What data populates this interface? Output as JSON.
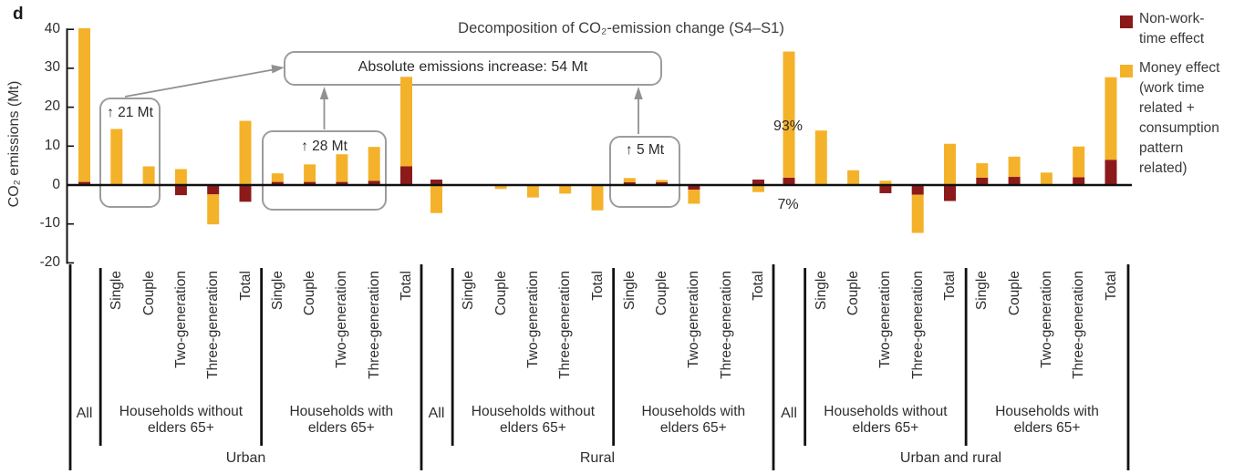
{
  "panel_label": "d",
  "title": "Decomposition of CO₂-emission change (S4–S1)",
  "y_axis": {
    "label": "CO₂ emissions (Mt)",
    "ticks": [
      40,
      30,
      20,
      10,
      0,
      -10,
      -20
    ]
  },
  "legend": [
    {
      "name": "Non-work-time effect",
      "display": "Non-work-\ntime effect",
      "color": "#8c1a1a"
    },
    {
      "name": "Money effect (work time related + consumption pattern related)",
      "display": "Money effect\n(work time\nrelated +\nconsumption\npattern\nrelated)",
      "color": "#f4b22a"
    }
  ],
  "annotations": {
    "absolute_increase": "Absolute emissions increase: 54 Mt",
    "urban_without_elders_increase": "↑ 21 Mt",
    "urban_with_elders_increase": "↑ 28 Mt",
    "rural_with_elders_increase": "↑ 5 Mt",
    "money_share": "93%",
    "non_work_share": "7%"
  },
  "chart_data": {
    "type": "bar",
    "stacked": true,
    "unit": "Mt",
    "ylabel": "CO₂ emissions (Mt)",
    "ylim": [
      -20,
      42
    ],
    "yticks": [
      40,
      30,
      20,
      10,
      0,
      -10,
      -20
    ],
    "grid": false,
    "legend_position": "top-right",
    "series_names": [
      "Non-work-time effect",
      "Money effect"
    ],
    "sections": [
      {
        "label": "Urban",
        "groups": [
          {
            "label": "All",
            "bars": [
              {
                "category": "All",
                "non_work_time": 0.8,
                "money": 39.5
              }
            ]
          },
          {
            "label": "Households without\nelders 65+",
            "bars": [
              {
                "category": "Single",
                "non_work_time": 0,
                "money": 14.4
              },
              {
                "category": "Couple",
                "non_work_time": 0,
                "money": 4.8
              },
              {
                "category": "Two-generation",
                "non_work_time": -2.6,
                "money": 4.1
              },
              {
                "category": "Three-generation",
                "non_work_time": -2.4,
                "money": -7.7
              },
              {
                "category": "Total",
                "non_work_time": -4.3,
                "money": 16.5
              }
            ]
          },
          {
            "label": "Households with\nelders 65+",
            "bars": [
              {
                "category": "Single",
                "non_work_time": 0.8,
                "money": 2.2
              },
              {
                "category": "Couple",
                "non_work_time": 0.8,
                "money": 4.5
              },
              {
                "category": "Two-generation",
                "non_work_time": 0.8,
                "money": 7.1
              },
              {
                "category": "Three-generation",
                "non_work_time": 1.1,
                "money": 8.7
              },
              {
                "category": "Total",
                "non_work_time": 4.8,
                "money": 23.0
              }
            ]
          }
        ]
      },
      {
        "label": "Rural",
        "groups": [
          {
            "label": "All",
            "bars": [
              {
                "category": "All",
                "non_work_time": 1.4,
                "money": -7.2
              }
            ]
          },
          {
            "label": "Households without\nelders 65+",
            "bars": [
              {
                "category": "Single",
                "non_work_time": 0,
                "money": 0
              },
              {
                "category": "Couple",
                "non_work_time": 0,
                "money": -1.0
              },
              {
                "category": "Two-generation",
                "non_work_time": 0,
                "money": -3.2
              },
              {
                "category": "Three-generation",
                "non_work_time": 0,
                "money": -2.2
              },
              {
                "category": "Total",
                "non_work_time": 0,
                "money": -6.5
              }
            ]
          },
          {
            "label": "Households with\nelders 65+",
            "bars": [
              {
                "category": "Single",
                "non_work_time": 0.7,
                "money": 1.1
              },
              {
                "category": "Couple",
                "non_work_time": 0.7,
                "money": 0.6
              },
              {
                "category": "Two-generation",
                "non_work_time": -1.2,
                "money": -3.6
              },
              {
                "category": "Three-generation",
                "non_work_time": 0,
                "money": 0
              },
              {
                "category": "Total",
                "non_work_time": 1.4,
                "money": -1.8
              }
            ]
          }
        ]
      },
      {
        "label": "Urban and rural",
        "groups": [
          {
            "label": "All",
            "bars": [
              {
                "category": "All",
                "non_work_time": 1.9,
                "money": 32.4
              }
            ]
          },
          {
            "label": "Households without\nelders 65+",
            "bars": [
              {
                "category": "Single",
                "non_work_time": 0,
                "money": 14.0
              },
              {
                "category": "Couple",
                "non_work_time": 0,
                "money": 3.8
              },
              {
                "category": "Two-generation",
                "non_work_time": -2.1,
                "money": 1.1
              },
              {
                "category": "Three-generation",
                "non_work_time": -2.5,
                "money": -9.8
              },
              {
                "category": "Total",
                "non_work_time": -4.1,
                "money": 10.6
              }
            ]
          },
          {
            "label": "Households with\nelders 65+",
            "bars": [
              {
                "category": "Single",
                "non_work_time": 1.9,
                "money": 3.7
              },
              {
                "category": "Couple",
                "non_work_time": 2.1,
                "money": 5.2
              },
              {
                "category": "Two-generation",
                "non_work_time": 0,
                "money": 3.2
              },
              {
                "category": "Three-generation",
                "non_work_time": 2.0,
                "money": 7.9
              },
              {
                "category": "Total",
                "non_work_time": 6.5,
                "money": 21.2
              }
            ]
          }
        ]
      }
    ]
  }
}
